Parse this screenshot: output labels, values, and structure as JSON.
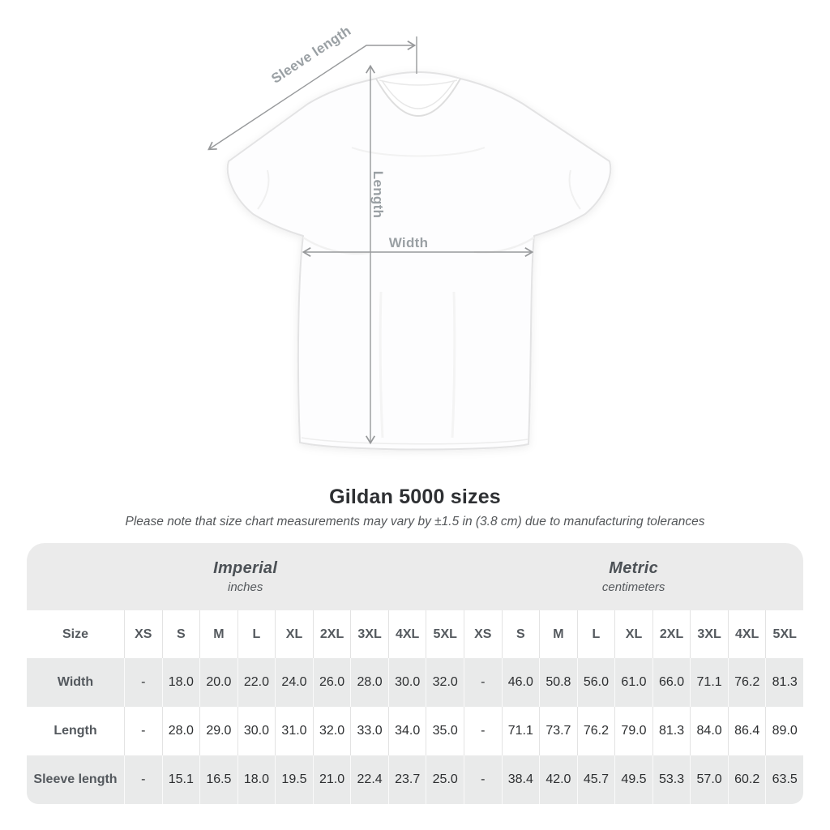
{
  "figure": {
    "labels": {
      "sleeve": "Sleeve length",
      "length": "Length",
      "width": "Width"
    },
    "annotation_color": "#97999b"
  },
  "header": {
    "title": "Gildan 5000 sizes",
    "subtitle": "Please note that size chart measurements may vary by ±1.5 in (3.8 cm) due to manufacturing tolerances"
  },
  "table": {
    "groups": [
      {
        "label": "Imperial",
        "sublabel": "inches"
      },
      {
        "label": "Metric",
        "sublabel": "centimeters"
      }
    ],
    "size_header": "Size",
    "sizes": [
      "XS",
      "S",
      "M",
      "L",
      "XL",
      "2XL",
      "3XL",
      "4XL",
      "5XL"
    ],
    "rows": [
      {
        "label": "Width",
        "imperial": [
          "-",
          "18.0",
          "20.0",
          "22.0",
          "24.0",
          "26.0",
          "28.0",
          "30.0",
          "32.0"
        ],
        "metric": [
          "-",
          "46.0",
          "50.8",
          "56.0",
          "61.0",
          "66.0",
          "71.1",
          "76.2",
          "81.3"
        ]
      },
      {
        "label": "Length",
        "imperial": [
          "-",
          "28.0",
          "29.0",
          "30.0",
          "31.0",
          "32.0",
          "33.0",
          "34.0",
          "35.0"
        ],
        "metric": [
          "-",
          "71.1",
          "73.7",
          "76.2",
          "79.0",
          "81.3",
          "84.0",
          "86.4",
          "89.0"
        ]
      },
      {
        "label": "Sleeve length",
        "imperial": [
          "-",
          "15.1",
          "16.5",
          "18.0",
          "19.5",
          "21.0",
          "22.4",
          "23.7",
          "25.0"
        ],
        "metric": [
          "-",
          "38.4",
          "42.0",
          "45.7",
          "49.5",
          "53.3",
          "57.0",
          "60.2",
          "63.5"
        ]
      }
    ]
  },
  "colors": {
    "band_gray": "#ebebeb",
    "row_gray": "#e9eaea",
    "title_text": "#2e3033",
    "header_text": "#54595e",
    "data_text": "#2d2f31",
    "annotation_gray": "#9aa0a4"
  }
}
